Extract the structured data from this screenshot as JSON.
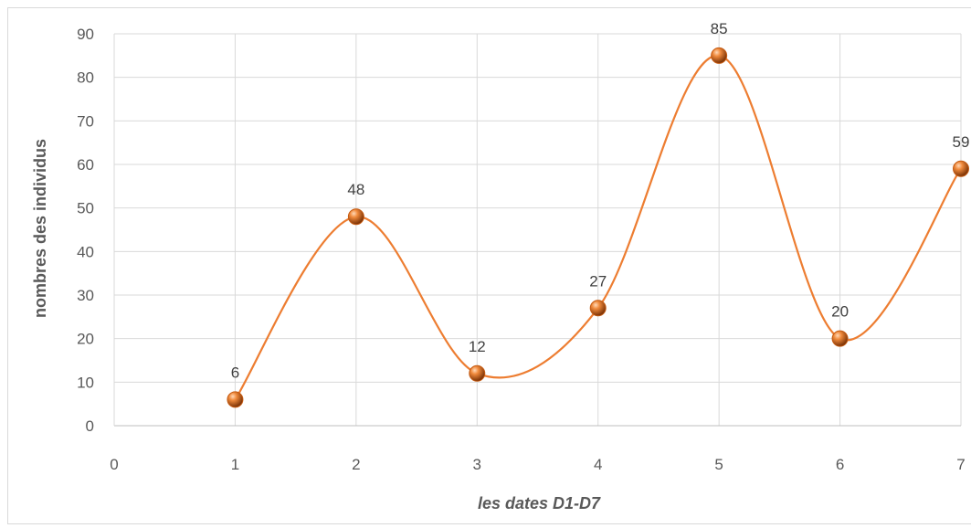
{
  "chart_data": {
    "type": "scatter",
    "smooth_line": true,
    "title": "",
    "xlabel": "les dates D1-D7",
    "ylabel": "nombres des individus",
    "xlim": [
      0,
      7
    ],
    "ylim": [
      0,
      90
    ],
    "x_ticks": [
      "0",
      "1",
      "2",
      "3",
      "4",
      "5",
      "6",
      "7"
    ],
    "y_ticks": [
      "0",
      "10",
      "20",
      "30",
      "40",
      "50",
      "60",
      "70",
      "80",
      "90"
    ],
    "grid": true,
    "legend": "none",
    "series_color": "#ed7d31",
    "marker_color": "#c55a11",
    "x": [
      1,
      2,
      3,
      4,
      5,
      6,
      7
    ],
    "y": [
      6,
      48,
      12,
      27,
      85,
      20,
      59
    ],
    "data_labels": [
      "6",
      "48",
      "12",
      "27",
      "85",
      "20",
      "59"
    ]
  }
}
